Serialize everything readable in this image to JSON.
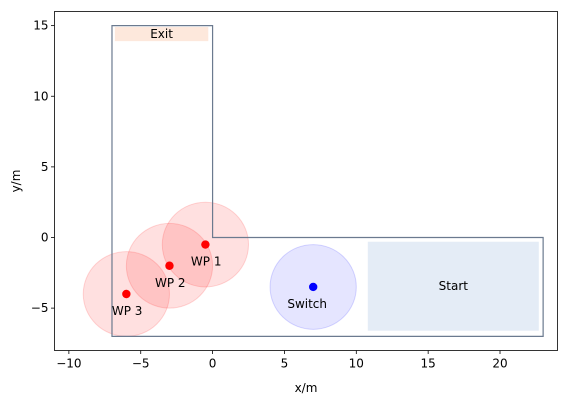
{
  "chart_data": {
    "type": "scatter",
    "title": "",
    "xlabel": "x/m",
    "ylabel": "y/m",
    "xlim": [
      -11,
      24
    ],
    "ylim": [
      -8,
      16
    ],
    "xticks": [
      -10,
      -5,
      0,
      5,
      10,
      15,
      20
    ],
    "yticks": [
      -5,
      0,
      5,
      10,
      15
    ],
    "tick_labels": {
      "x": [
        "−10",
        "−5",
        "0",
        "5",
        "10",
        "15",
        "20"
      ],
      "y": [
        "−5",
        "0",
        "5",
        "10",
        "15"
      ]
    },
    "grid": false,
    "boundary": {
      "points": [
        [
          -7,
          15
        ],
        [
          0,
          15
        ],
        [
          0,
          0
        ],
        [
          23,
          0
        ],
        [
          23,
          -7
        ],
        [
          -7,
          -7
        ]
      ],
      "color": "#6b7a8f"
    },
    "zones": [
      {
        "label": "Exit",
        "x": [
          -6.8,
          -0.3
        ],
        "y": [
          13.9,
          14.9
        ],
        "color": "#fde8dc"
      },
      {
        "label": "Start",
        "x": [
          10.8,
          22.7
        ],
        "y": [
          -6.6,
          -0.3
        ],
        "color": "#e4ecf6"
      }
    ],
    "waypoints": [
      {
        "label": "WP 1",
        "x": -0.5,
        "y": -0.5,
        "radius": 3.0
      },
      {
        "label": "WP 2",
        "x": -3.0,
        "y": -2.0,
        "radius": 3.0
      },
      {
        "label": "WP 3",
        "x": -6.0,
        "y": -4.0,
        "radius": 3.0
      }
    ],
    "switch": {
      "label": "Switch",
      "x": 7.0,
      "y": -3.5,
      "radius": 3.0
    },
    "colors": {
      "waypoint": "#ff0000",
      "waypoint_area": "#ffcccc",
      "switch": "#0000ff",
      "switch_area": "#ccccff"
    }
  }
}
